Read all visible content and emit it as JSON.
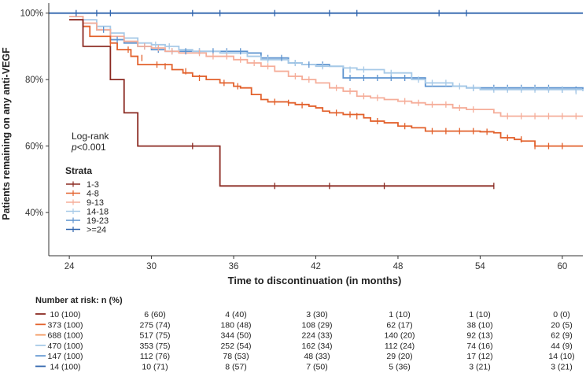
{
  "chart_data": {
    "type": "line",
    "subtype": "kaplan-meier",
    "ylabel": "Patients remaining on any anti-VEGF",
    "xlabel": "Time to discontinuation (in months)",
    "xlim": [
      22.5,
      61.5
    ],
    "ylim": [
      27,
      103
    ],
    "x_ticks": [
      24,
      30,
      36,
      42,
      48,
      54,
      60
    ],
    "y_ticks": [
      {
        "value": 100,
        "label": "100%"
      },
      {
        "value": 80,
        "label": "80%"
      },
      {
        "value": 60,
        "label": "60%"
      },
      {
        "value": 40,
        "label": "40%"
      }
    ],
    "annotation": {
      "line1": "Log-rank",
      "line2_italic": "p",
      "line2_rest": "<0.001"
    },
    "legend": {
      "title": "Strata",
      "position": "left-middle"
    },
    "series": [
      {
        "name": "1-3",
        "color": "#8b2a22",
        "steps": [
          [
            24,
            98
          ],
          [
            25,
            90
          ],
          [
            27,
            80
          ],
          [
            28,
            70
          ],
          [
            29,
            60
          ],
          [
            35,
            48
          ],
          [
            55,
            48
          ]
        ],
        "censors": [
          [
            33,
            60
          ],
          [
            39,
            48
          ],
          [
            43,
            48
          ],
          [
            47,
            48
          ],
          [
            55,
            48
          ]
        ]
      },
      {
        "name": "4-8",
        "color": "#e2612c",
        "steps": [
          [
            24,
            98
          ],
          [
            25,
            96
          ],
          [
            25.5,
            93
          ],
          [
            27,
            91
          ],
          [
            27.5,
            89
          ],
          [
            28.5,
            87
          ],
          [
            29,
            84.5
          ],
          [
            30.5,
            84.5
          ],
          [
            31.5,
            83
          ],
          [
            32.3,
            82
          ],
          [
            33,
            81
          ],
          [
            34,
            80
          ],
          [
            35,
            79
          ],
          [
            36,
            78
          ],
          [
            36.5,
            77.5
          ],
          [
            37.3,
            75.5
          ],
          [
            38,
            74
          ],
          [
            38.5,
            73.3
          ],
          [
            40,
            73
          ],
          [
            40.5,
            72.5
          ],
          [
            41.5,
            72
          ],
          [
            42,
            71.5
          ],
          [
            42.5,
            70.5
          ],
          [
            43,
            70
          ],
          [
            44,
            69.5
          ],
          [
            45.5,
            68.5
          ],
          [
            46,
            67.5
          ],
          [
            47,
            67
          ],
          [
            48,
            66
          ],
          [
            49,
            65.5
          ],
          [
            50,
            64.5
          ],
          [
            52,
            64.5
          ],
          [
            54,
            64.3
          ],
          [
            55,
            64
          ],
          [
            55.5,
            62.5
          ],
          [
            56.5,
            62
          ],
          [
            57,
            61.5
          ],
          [
            58,
            60
          ],
          [
            61.5,
            60
          ]
        ],
        "censors": [
          [
            27,
            91
          ],
          [
            28.3,
            89
          ],
          [
            29.3,
            86.5
          ],
          [
            30.4,
            84.5
          ],
          [
            31,
            84
          ],
          [
            32.5,
            82.5
          ],
          [
            33.5,
            80.5
          ],
          [
            35.3,
            79
          ],
          [
            36.3,
            78
          ],
          [
            39,
            73.3
          ],
          [
            40,
            73
          ],
          [
            41,
            72.3
          ],
          [
            43.5,
            70
          ],
          [
            44.5,
            69.5
          ],
          [
            45,
            69
          ],
          [
            46.5,
            67.5
          ],
          [
            48.5,
            66
          ],
          [
            50.5,
            64.5
          ],
          [
            51.5,
            64.5
          ],
          [
            52.5,
            64.5
          ],
          [
            53.5,
            64.5
          ],
          [
            54.5,
            64.3
          ],
          [
            56,
            62.5
          ],
          [
            57,
            62
          ],
          [
            58,
            60
          ],
          [
            59,
            60
          ],
          [
            60,
            60
          ]
        ]
      },
      {
        "name": "9-13",
        "color": "#f5ad99",
        "steps": [
          [
            24,
            99
          ],
          [
            25,
            97
          ],
          [
            26,
            95
          ],
          [
            27,
            93
          ],
          [
            28,
            91.5
          ],
          [
            29,
            90
          ],
          [
            30,
            89.5
          ],
          [
            31,
            88.5
          ],
          [
            32,
            88
          ],
          [
            33,
            88
          ],
          [
            34,
            87
          ],
          [
            35,
            87
          ],
          [
            36,
            86
          ],
          [
            37,
            85
          ],
          [
            38,
            84
          ],
          [
            39,
            82.5
          ],
          [
            40,
            81
          ],
          [
            41,
            80
          ],
          [
            42,
            79
          ],
          [
            43,
            77.5
          ],
          [
            44,
            76.5
          ],
          [
            45,
            75
          ],
          [
            46,
            74.5
          ],
          [
            47,
            74
          ],
          [
            48,
            73.5
          ],
          [
            49,
            73
          ],
          [
            50,
            72.5
          ],
          [
            51,
            72.5
          ],
          [
            52,
            71.5
          ],
          [
            53,
            71
          ],
          [
            54,
            71
          ],
          [
            55,
            70
          ],
          [
            55.5,
            69
          ],
          [
            61.5,
            69
          ]
        ],
        "censors": [
          [
            29.5,
            90
          ],
          [
            30.5,
            89.5
          ],
          [
            31.5,
            88.5
          ],
          [
            33.5,
            88
          ],
          [
            34.5,
            87
          ],
          [
            35.5,
            87
          ],
          [
            36.5,
            86
          ],
          [
            37.5,
            85
          ],
          [
            38.5,
            84
          ],
          [
            40.5,
            81
          ],
          [
            41.5,
            80
          ],
          [
            43.5,
            77.5
          ],
          [
            44.5,
            76.5
          ],
          [
            45.5,
            75
          ],
          [
            46.5,
            74.5
          ],
          [
            48.5,
            73.5
          ],
          [
            49.5,
            73
          ],
          [
            50.5,
            72.5
          ],
          [
            51.5,
            72.5
          ],
          [
            52.5,
            71.5
          ],
          [
            53.5,
            71
          ],
          [
            56,
            69
          ],
          [
            57,
            69
          ],
          [
            58,
            69
          ],
          [
            59,
            69
          ],
          [
            60,
            69
          ],
          [
            61,
            69
          ]
        ]
      },
      {
        "name": "14-18",
        "color": "#a6c9e7",
        "steps": [
          [
            24,
            99
          ],
          [
            25,
            98
          ],
          [
            26,
            96
          ],
          [
            27,
            94
          ],
          [
            28,
            92.5
          ],
          [
            29,
            91
          ],
          [
            30,
            90.5
          ],
          [
            31,
            90
          ],
          [
            32,
            89
          ],
          [
            33,
            88.5
          ],
          [
            35,
            88
          ],
          [
            37,
            87
          ],
          [
            38,
            86
          ],
          [
            40,
            85
          ],
          [
            41,
            84.5
          ],
          [
            42,
            84
          ],
          [
            44,
            83.5
          ],
          [
            45,
            83
          ],
          [
            47,
            82
          ],
          [
            49,
            80
          ],
          [
            50,
            79
          ],
          [
            52,
            78
          ],
          [
            53,
            77.5
          ],
          [
            54,
            77
          ],
          [
            61.5,
            76.5
          ]
        ],
        "censors": [
          [
            30.3,
            90.5
          ],
          [
            31.3,
            90
          ],
          [
            33.5,
            88.5
          ],
          [
            35.5,
            88
          ],
          [
            38.5,
            86
          ],
          [
            40.5,
            85
          ],
          [
            42.5,
            84
          ],
          [
            44.5,
            83
          ],
          [
            45.5,
            83
          ],
          [
            47.5,
            82
          ],
          [
            49.5,
            80
          ],
          [
            50.5,
            79
          ],
          [
            51.5,
            79
          ],
          [
            52.5,
            78
          ],
          [
            53.5,
            77.5
          ],
          [
            55,
            77
          ],
          [
            56,
            77
          ],
          [
            57,
            77
          ],
          [
            58,
            77
          ],
          [
            59,
            77
          ],
          [
            60,
            77
          ],
          [
            61,
            76.5
          ]
        ]
      },
      {
        "name": "19-23",
        "color": "#5d93cf",
        "steps": [
          [
            24,
            98
          ],
          [
            25,
            97
          ],
          [
            26,
            95
          ],
          [
            27,
            92
          ],
          [
            28,
            91
          ],
          [
            29,
            90
          ],
          [
            30,
            89
          ],
          [
            31,
            88.5
          ],
          [
            32,
            88.5
          ],
          [
            37,
            88
          ],
          [
            38,
            86.5
          ],
          [
            40,
            85
          ],
          [
            41,
            84.5
          ],
          [
            43,
            84
          ],
          [
            44,
            80.5
          ],
          [
            49,
            80.5
          ],
          [
            50,
            78
          ],
          [
            53,
            77.5
          ],
          [
            61.5,
            77
          ]
        ],
        "censors": [
          [
            26.5,
            95
          ],
          [
            27.5,
            92
          ],
          [
            29.5,
            90
          ],
          [
            30.5,
            89
          ],
          [
            31.5,
            88.5
          ],
          [
            32.5,
            88.5
          ],
          [
            33.5,
            88.5
          ],
          [
            34.5,
            88.5
          ],
          [
            35.5,
            88.5
          ],
          [
            36.5,
            88.5
          ],
          [
            38.5,
            86.5
          ],
          [
            39.5,
            86.5
          ],
          [
            40.5,
            85
          ],
          [
            41.5,
            84.5
          ],
          [
            42.5,
            84.5
          ],
          [
            44.5,
            80.5
          ],
          [
            45.5,
            80.5
          ],
          [
            46.5,
            80.5
          ],
          [
            47.5,
            80.5
          ],
          [
            48.5,
            80.5
          ],
          [
            53.5,
            77.5
          ],
          [
            55,
            77.5
          ],
          [
            56,
            77.5
          ],
          [
            57,
            77.5
          ],
          [
            58,
            77.5
          ],
          [
            59,
            77.5
          ],
          [
            60,
            77
          ],
          [
            61,
            77
          ]
        ]
      },
      {
        "name": ">=24",
        "color": "#2f64ad",
        "steps": [
          [
            22.5,
            100
          ],
          [
            61.5,
            100
          ]
        ],
        "censors": [
          [
            24.5,
            100
          ],
          [
            26,
            100
          ],
          [
            27,
            100
          ],
          [
            33,
            100
          ],
          [
            35,
            100
          ],
          [
            39,
            100
          ],
          [
            43,
            100
          ],
          [
            45,
            100
          ],
          [
            51,
            100
          ],
          [
            53,
            100
          ]
        ]
      }
    ],
    "risk_table": {
      "title": "Number at risk: n (%)",
      "rows": [
        {
          "name": "1-3",
          "color": "#8b2a22",
          "values": [
            "10 (100)",
            "6 (60)",
            "4 (40)",
            "3 (30)",
            "1 (10)",
            "1 (10)",
            "0 (0)"
          ]
        },
        {
          "name": "4-8",
          "color": "#e2612c",
          "values": [
            "373 (100)",
            "275 (74)",
            "180 (48)",
            "108 (29)",
            "62 (17)",
            "38 (10)",
            "20 (5)"
          ]
        },
        {
          "name": "9-13",
          "color": "#f39a61",
          "values": [
            "688 (100)",
            "517 (75)",
            "344 (50)",
            "224 (33)",
            "140 (20)",
            "92 (13)",
            "62 (9)"
          ]
        },
        {
          "name": "14-18",
          "color": "#a6c9e7",
          "values": [
            "470 (100)",
            "353 (75)",
            "252 (54)",
            "162 (34)",
            "112 (24)",
            "74 (16)",
            "44 (9)"
          ]
        },
        {
          "name": "19-23",
          "color": "#5d93cf",
          "values": [
            "147 (100)",
            "112 (76)",
            "78 (53)",
            "48 (33)",
            "29 (20)",
            "17 (12)",
            "14 (10)"
          ]
        },
        {
          "name": ">=24",
          "color": "#2f64ad",
          "values": [
            "14 (100)",
            "10 (71)",
            "8 (57)",
            "7 (50)",
            "5 (36)",
            "3 (21)",
            "3 (21)"
          ]
        }
      ]
    }
  }
}
